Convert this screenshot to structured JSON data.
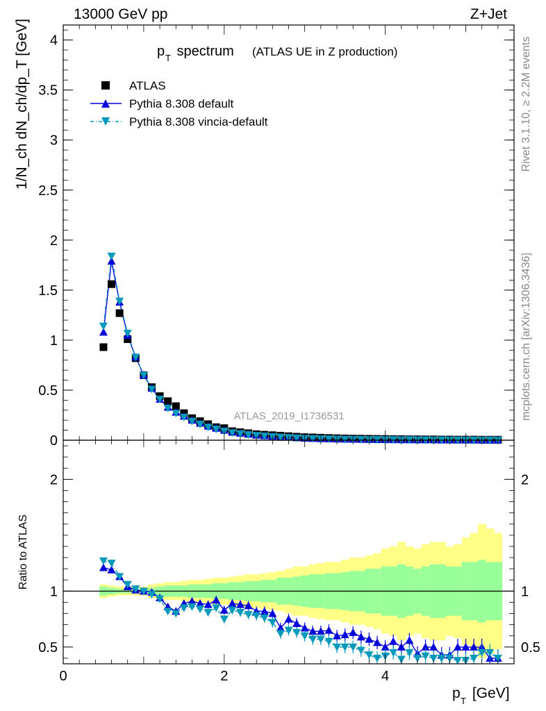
{
  "header": {
    "energy_label": "13000 GeV pp",
    "process_label": "Z+Jet"
  },
  "side_labels": {
    "rivet": "Rivet 3.1.10, ≥ 2.2M events",
    "mcplots": "mcplots.cern.ch [arXiv:1306.3436]"
  },
  "chart_data": [
    {
      "type": "scatter",
      "title_main": "p",
      "title_sub": "T",
      "title_rest": " spectrum",
      "title_note": "(ATLAS UE in Z production)",
      "ylabel": "1/N_ch dN_ch/dp_T [GeV]",
      "ylim": [
        0,
        4.15
      ],
      "xlim": [
        0,
        5.6
      ],
      "yticks": [
        "0",
        "0.5",
        "1",
        "1.5",
        "2",
        "2.5",
        "3",
        "3.5",
        "4"
      ],
      "ytick_values": [
        0,
        0.5,
        1,
        1.5,
        2,
        2.5,
        3,
        3.5,
        4
      ],
      "watermark": "ATLAS_2019_I1736531",
      "legend": [
        {
          "label": "ATLAS",
          "color": "#000000"
        },
        {
          "label": "Pythia 8.308 default",
          "color": "#0000dd"
        },
        {
          "label": "Pythia 8.308 vincia-default",
          "color": "#0099bb"
        }
      ],
      "x": [
        0.5,
        0.6,
        0.7,
        0.8,
        0.9,
        1.0,
        1.1,
        1.2,
        1.3,
        1.4,
        1.5,
        1.6,
        1.7,
        1.8,
        1.9,
        2.0,
        2.1,
        2.2,
        2.3,
        2.4,
        2.5,
        2.6,
        2.7,
        2.8,
        2.9,
        3.0,
        3.1,
        3.2,
        3.3,
        3.4,
        3.5,
        3.6,
        3.7,
        3.8,
        3.9,
        4.0,
        4.1,
        4.2,
        4.3,
        4.4,
        4.5,
        4.6,
        4.7,
        4.8,
        4.9,
        5.0,
        5.1,
        5.2,
        5.3,
        5.4
      ],
      "series": [
        {
          "name": "ATLAS",
          "values": [
            0.93,
            1.56,
            1.27,
            1.01,
            0.82,
            0.65,
            0.53,
            0.44,
            0.39,
            0.34,
            0.27,
            0.22,
            0.19,
            0.16,
            0.13,
            0.12,
            0.09,
            0.08,
            0.07,
            0.06,
            0.055,
            0.05,
            0.045,
            0.04,
            0.035,
            0.03,
            0.028,
            0.025,
            0.022,
            0.02,
            0.018,
            0.016,
            0.015,
            0.014,
            0.013,
            0.012,
            0.011,
            0.01,
            0.009,
            0.009,
            0.008,
            0.008,
            0.007,
            0.007,
            0.006,
            0.006,
            0.006,
            0.005,
            0.005,
            0.005
          ]
        },
        {
          "name": "Pythia 8.308 default",
          "values": [
            1.08,
            1.79,
            1.38,
            1.05,
            0.83,
            0.65,
            0.52,
            0.41,
            0.33,
            0.28,
            0.24,
            0.2,
            0.17,
            0.14,
            0.12,
            0.1,
            0.08,
            0.07,
            0.06,
            0.05,
            0.045,
            0.04,
            0.03,
            0.03,
            0.025,
            0.02,
            0.018,
            0.016,
            0.014,
            0.012,
            0.011,
            0.01,
            0.009,
            0.008,
            0.007,
            0.006,
            0.006,
            0.005,
            0.005,
            0.004,
            0.004,
            0.004,
            0.003,
            0.003,
            0.003,
            0.003,
            0.003,
            0.002,
            0.002,
            0.002
          ]
        },
        {
          "name": "Pythia 8.308 vincia-default",
          "values": [
            1.14,
            1.84,
            1.39,
            1.07,
            0.83,
            0.65,
            0.51,
            0.41,
            0.32,
            0.27,
            0.23,
            0.19,
            0.16,
            0.13,
            0.11,
            0.09,
            0.075,
            0.065,
            0.055,
            0.048,
            0.042,
            0.036,
            0.03,
            0.026,
            0.022,
            0.018,
            0.016,
            0.014,
            0.012,
            0.01,
            0.009,
            0.008,
            0.007,
            0.006,
            0.006,
            0.005,
            0.005,
            0.004,
            0.004,
            0.004,
            0.003,
            0.003,
            0.003,
            0.003,
            0.002,
            0.002,
            0.002,
            0.002,
            0.002,
            0.002
          ]
        }
      ]
    },
    {
      "type": "scatter",
      "ylabel": "Ratio to ATLAS",
      "xlabel_main": "p",
      "xlabel_sub": "T",
      "xlabel_rest": " [GeV]",
      "ylim": [
        0.35,
        2.35
      ],
      "xlim": [
        0,
        5.6
      ],
      "yticks": [
        "0.5",
        "1",
        "2"
      ],
      "ytick_values": [
        0.5,
        1,
        2
      ],
      "xticks": [
        "0",
        "2",
        "4"
      ],
      "xtick_values": [
        0,
        2,
        4
      ],
      "x": [
        0.5,
        0.6,
        0.7,
        0.8,
        0.9,
        1.0,
        1.1,
        1.2,
        1.3,
        1.4,
        1.5,
        1.6,
        1.7,
        1.8,
        1.9,
        2.0,
        2.1,
        2.2,
        2.3,
        2.4,
        2.5,
        2.6,
        2.7,
        2.8,
        2.9,
        3.0,
        3.1,
        3.2,
        3.3,
        3.4,
        3.5,
        3.6,
        3.7,
        3.8,
        3.9,
        4.0,
        4.1,
        4.2,
        4.3,
        4.4,
        4.5,
        4.6,
        4.7,
        4.8,
        4.9,
        5.0,
        5.1,
        5.2,
        5.3,
        5.4
      ],
      "band_green": [
        0.04,
        0.03,
        0.02,
        0.02,
        0.02,
        0.02,
        0.03,
        0.04,
        0.05,
        0.05,
        0.05,
        0.06,
        0.06,
        0.06,
        0.07,
        0.07,
        0.08,
        0.08,
        0.09,
        0.09,
        0.1,
        0.1,
        0.12,
        0.12,
        0.13,
        0.14,
        0.15,
        0.15,
        0.16,
        0.16,
        0.17,
        0.18,
        0.18,
        0.2,
        0.2,
        0.22,
        0.22,
        0.24,
        0.22,
        0.2,
        0.22,
        0.24,
        0.24,
        0.22,
        0.22,
        0.26,
        0.26,
        0.28,
        0.26,
        0.26
      ],
      "band_yellow": [
        0.06,
        0.05,
        0.04,
        0.04,
        0.04,
        0.04,
        0.06,
        0.07,
        0.08,
        0.08,
        0.09,
        0.1,
        0.1,
        0.11,
        0.12,
        0.12,
        0.13,
        0.14,
        0.15,
        0.15,
        0.16,
        0.17,
        0.18,
        0.2,
        0.22,
        0.22,
        0.24,
        0.25,
        0.26,
        0.26,
        0.28,
        0.3,
        0.3,
        0.32,
        0.34,
        0.38,
        0.4,
        0.44,
        0.4,
        0.38,
        0.42,
        0.44,
        0.44,
        0.4,
        0.42,
        0.48,
        0.52,
        0.6,
        0.56,
        0.52
      ],
      "series": [
        {
          "name": "Pythia 8.308 default",
          "values": [
            1.21,
            1.19,
            1.13,
            1.04,
            1.01,
            1.0,
            0.99,
            0.94,
            0.86,
            0.82,
            0.89,
            0.91,
            0.89,
            0.88,
            0.92,
            0.83,
            0.89,
            0.88,
            0.87,
            0.82,
            0.82,
            0.8,
            0.67,
            0.75,
            0.71,
            0.67,
            0.64,
            0.64,
            0.65,
            0.6,
            0.61,
            0.63,
            0.59,
            0.57,
            0.54,
            0.5,
            0.55,
            0.5,
            0.56,
            0.44,
            0.5,
            0.5,
            0.43,
            0.43,
            0.5,
            0.5,
            0.5,
            0.5,
            0.4,
            0.4
          ]
        },
        {
          "name": "Pythia 8.308 vincia-default",
          "values": [
            1.27,
            1.25,
            1.13,
            1.06,
            1.02,
            1.0,
            0.97,
            0.93,
            0.82,
            0.8,
            0.85,
            0.86,
            0.84,
            0.81,
            0.85,
            0.75,
            0.83,
            0.81,
            0.79,
            0.78,
            0.76,
            0.72,
            0.62,
            0.65,
            0.63,
            0.6,
            0.57,
            0.57,
            0.55,
            0.5,
            0.5,
            0.5,
            0.47,
            0.43,
            0.4,
            0.42,
            0.45,
            0.39,
            0.45,
            0.4,
            0.42,
            0.4,
            0.4,
            0.4,
            0.38,
            0.38,
            0.4,
            0.45,
            0.45,
            0.4
          ]
        }
      ]
    }
  ]
}
